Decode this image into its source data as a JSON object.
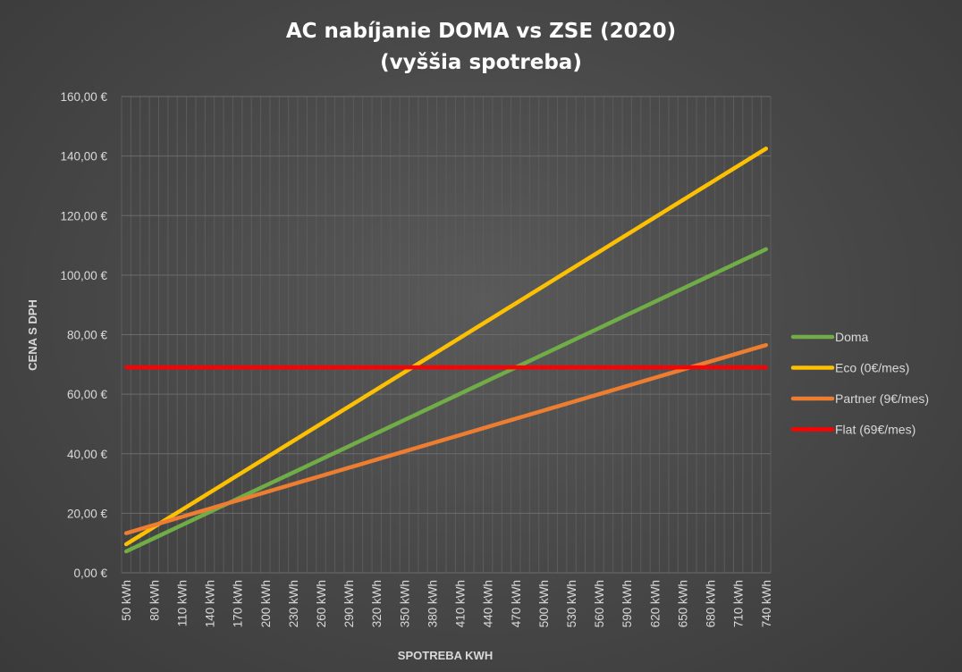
{
  "chart_data": {
    "type": "line",
    "title": "AC nabíjanie DOMA vs ZSE (2020)",
    "subtitle": "(vyššia spotreba)",
    "xlabel": "SPOTREBA KWH",
    "ylabel": "CENA S DPH",
    "x": [
      50,
      60,
      70,
      80,
      90,
      100,
      110,
      120,
      130,
      140,
      150,
      160,
      170,
      180,
      190,
      200,
      210,
      220,
      230,
      240,
      250,
      260,
      270,
      280,
      290,
      300,
      310,
      320,
      330,
      340,
      350,
      360,
      370,
      380,
      390,
      400,
      410,
      420,
      430,
      440,
      450,
      460,
      470,
      480,
      490,
      500,
      510,
      520,
      530,
      540,
      550,
      560,
      570,
      580,
      590,
      600,
      610,
      620,
      630,
      640,
      650,
      660,
      670,
      680,
      690,
      700,
      710,
      720,
      730,
      740
    ],
    "x_tick_labels": [
      "50 kWh",
      "80 kWh",
      "110 kWh",
      "140 kWh",
      "170 kWh",
      "200 kWh",
      "230 kWh",
      "260 kWh",
      "290 kWh",
      "320 kWh",
      "350 kWh",
      "380 kWh",
      "410 kWh",
      "440 kWh",
      "470 kWh",
      "500 kWh",
      "530 kWh",
      "560 kWh",
      "590 kWh",
      "620 kWh",
      "650 kWh",
      "680 kWh",
      "710 kWh",
      "740 kWh"
    ],
    "y_tick_labels": [
      "0,00 €",
      "20,00 €",
      "40,00 €",
      "60,00 €",
      "80,00 €",
      "100,00 €",
      "120,00 €",
      "140,00 €",
      "160,00 €"
    ],
    "ylim": [
      0,
      160
    ],
    "y_step": 20,
    "grid": true,
    "legend_position": "right",
    "series": [
      {
        "name": "Doma",
        "color": "#70ad47",
        "line": [
          50,
          7.2,
          740,
          108.7
        ]
      },
      {
        "name": "Eco (0€/mes)",
        "color": "#ffc000",
        "line": [
          50,
          9.6,
          740,
          142.5
        ]
      },
      {
        "name": "Partner (9€/mes)",
        "color": "#ed7d31",
        "line": [
          50,
          13.3,
          740,
          76.5
        ]
      },
      {
        "name": "Flat (69€/mes)",
        "color": "#ff0000",
        "line": [
          50,
          69.0,
          740,
          69.0
        ]
      }
    ]
  }
}
